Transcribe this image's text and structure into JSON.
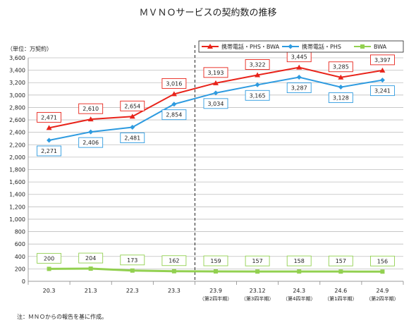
{
  "chart_data": {
    "type": "line",
    "title": "ＭＶＮＯサービスの契約数の推移",
    "unit_label": "（単位：万契約）",
    "note": "注：ＭＮＯからの報告を基に作成。",
    "categories": [
      {
        "main": "20.3",
        "sub": ""
      },
      {
        "main": "21.3",
        "sub": ""
      },
      {
        "main": "22.3",
        "sub": ""
      },
      {
        "main": "23.3",
        "sub": ""
      },
      {
        "main": "23.9",
        "sub": "（第2四半期）"
      },
      {
        "main": "23.12",
        "sub": "（第3四半期）"
      },
      {
        "main": "24.3",
        "sub": "（第4四半期）"
      },
      {
        "main": "24.6",
        "sub": "（第1四半期）"
      },
      {
        "main": "24.9",
        "sub": "（第2四半期）"
      }
    ],
    "ylim": [
      0,
      3600
    ],
    "ytick_step": 200,
    "grid": true,
    "legend_position": "top-right",
    "divider_after_index": 3,
    "series": [
      {
        "name": "携帯電話・PHS・BWA",
        "color": "#e8231a",
        "marker": "triangle",
        "label_position": "above",
        "values": [
          2471,
          2610,
          2654,
          3016,
          3193,
          3322,
          3445,
          3285,
          3397
        ]
      },
      {
        "name": "携帯電話・PHS",
        "color": "#2e9be0",
        "marker": "diamond",
        "label_position": "below",
        "values": [
          2271,
          2406,
          2481,
          2854,
          3034,
          3165,
          3287,
          3128,
          3241
        ]
      },
      {
        "name": "BWA",
        "color": "#92d050",
        "marker": "square",
        "label_position": "above",
        "values": [
          200,
          204,
          173,
          162,
          159,
          157,
          158,
          157,
          156
        ]
      }
    ]
  }
}
